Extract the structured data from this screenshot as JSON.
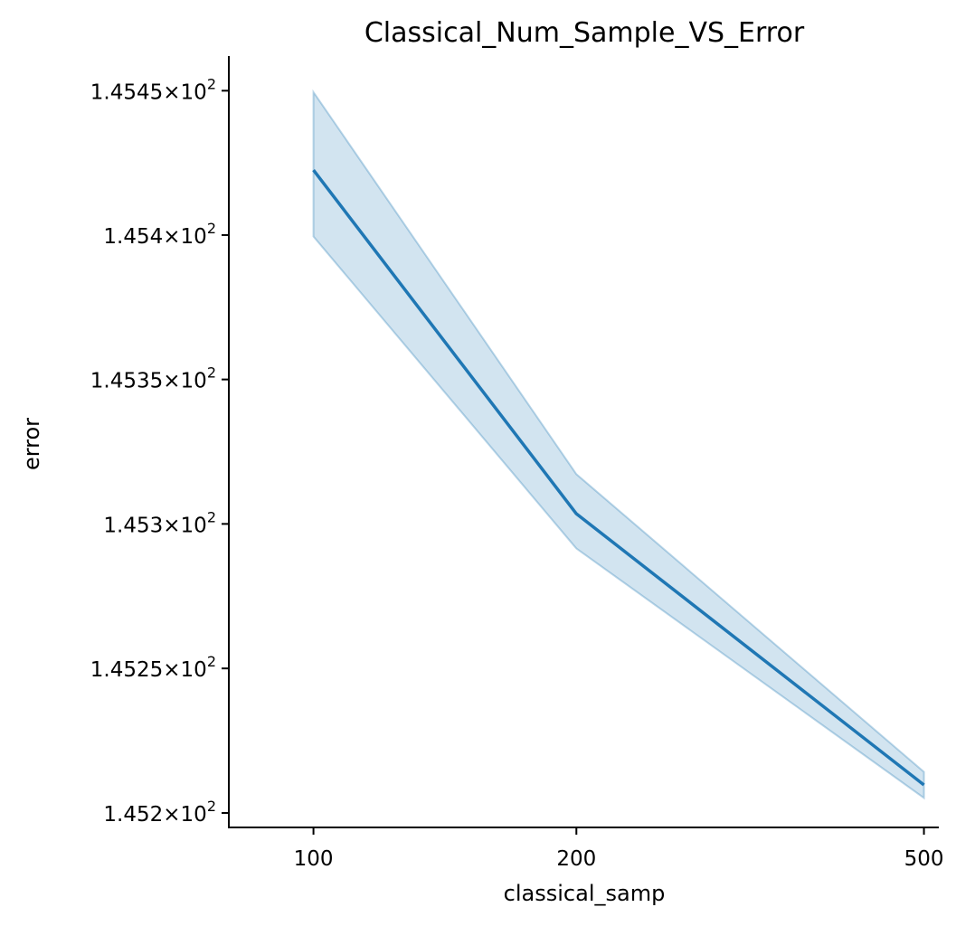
{
  "chart_data": {
    "type": "line",
    "title": "Classical_Num_Sample_VS_Error",
    "xlabel": "classical_samp",
    "ylabel": "error",
    "x": [
      100,
      200,
      500
    ],
    "xticks": [
      100,
      200,
      500
    ],
    "xlim": [
      80,
      520
    ],
    "yticks": [
      145.2,
      145.25,
      145.3,
      145.35,
      145.4,
      145.45
    ],
    "ytick_mantissas": [
      "1.452",
      "1.4525",
      "1.453",
      "1.4535",
      "1.454",
      "1.4545"
    ],
    "ytick_base": "10",
    "ytick_exponent": "2",
    "ylim": [
      145.195,
      145.462
    ],
    "yscale": "log",
    "grid": false,
    "series": [
      {
        "values": [
          145.4225,
          145.3035,
          145.2097
        ],
        "ci_low": [
          145.3995,
          145.2915,
          145.2052
        ],
        "ci_high": [
          145.4495,
          145.3172,
          145.2142
        ],
        "color": "#1f77b4"
      }
    ],
    "ci_color": "#1f77b4"
  }
}
